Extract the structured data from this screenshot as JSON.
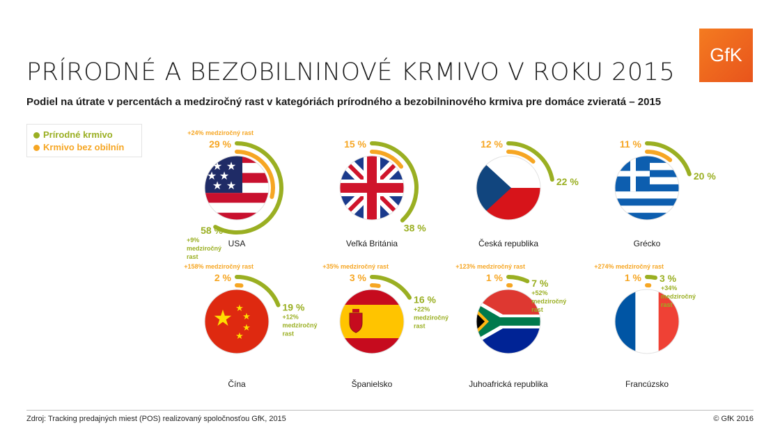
{
  "title": "PRÍRODNÉ A BEZOBILNINOVÉ KRMIVO V ROKU 2015",
  "subtitle": "Podiel na útrate v percentách a medziročný rast v kategóriách prírodného a bezobilninového krmiva pre domáce zvieratá – 2015",
  "logo": {
    "text": "GfK",
    "color": "#f26522"
  },
  "legend": [
    {
      "label": "Prírodné krmivo",
      "color": "#9aaf22"
    },
    {
      "label": "Krmivo bez obilnín",
      "color": "#f6a623"
    }
  ],
  "footer": {
    "source": "Zdroj: Tracking predajných miest (POS) realizovaný spoločnosťou GfK, 2015",
    "copyright": "© GfK 2016"
  },
  "chart_data": {
    "type": "radial-bar",
    "series": [
      {
        "name": "Prírodné krmivo",
        "color": "#9aaf22"
      },
      {
        "name": "Krmivo bez obilnín",
        "color": "#f6a623"
      }
    ],
    "countries": [
      {
        "name": "USA",
        "flag": "flag-usa-icon",
        "natural": 58,
        "natural_label": "58 %",
        "natural_growth": [
          "+9%",
          "medziročný",
          "rast"
        ],
        "grainfree": 29,
        "grainfree_label": "29 %",
        "grainfree_growth": "+24% medziročný rast"
      },
      {
        "name": "Veľká Británia",
        "flag": "flag-uk-icon",
        "natural": 38,
        "natural_label": "38 %",
        "natural_growth": [],
        "grainfree": 15,
        "grainfree_label": "15 %",
        "grainfree_growth": ""
      },
      {
        "name": "Česká republika",
        "flag": "flag-czech-icon",
        "natural": 22,
        "natural_label": "22 %",
        "natural_growth": [],
        "grainfree": 12,
        "grainfree_label": "12 %",
        "grainfree_growth": ""
      },
      {
        "name": "Grécko",
        "flag": "flag-greece-icon",
        "natural": 20,
        "natural_label": "20 %",
        "natural_growth": [],
        "grainfree": 11,
        "grainfree_label": "11 %",
        "grainfree_growth": ""
      },
      {
        "name": "Čína",
        "flag": "flag-china-icon",
        "natural": 19,
        "natural_label": "19 %",
        "natural_growth": [
          "+12%",
          "medziročný",
          "rast"
        ],
        "grainfree": 2,
        "grainfree_label": "2 %",
        "grainfree_growth": "+158% medziročný rast"
      },
      {
        "name": "Španielsko",
        "flag": "flag-spain-icon",
        "natural": 16,
        "natural_label": "16 %",
        "natural_growth": [
          "+22%",
          "medziročný",
          "rast"
        ],
        "grainfree": 3,
        "grainfree_label": "3 %",
        "grainfree_growth": "+35% medziročný rast"
      },
      {
        "name": "Juhoafrická republika",
        "flag": "flag-south-africa-icon",
        "natural": 7,
        "natural_label": "7 %",
        "natural_growth": [
          "+52%",
          "medziročný",
          "rast"
        ],
        "grainfree": 1,
        "grainfree_label": "1 %",
        "grainfree_growth": "+123% medziročný rast"
      },
      {
        "name": "Francúzsko",
        "flag": "flag-france-icon",
        "natural": 3,
        "natural_label": "3 %",
        "natural_growth": [
          "+34%",
          "medziročný",
          "rast"
        ],
        "grainfree": 1,
        "grainfree_label": "1 %",
        "grainfree_growth": "+274% medziročný rast"
      }
    ]
  }
}
